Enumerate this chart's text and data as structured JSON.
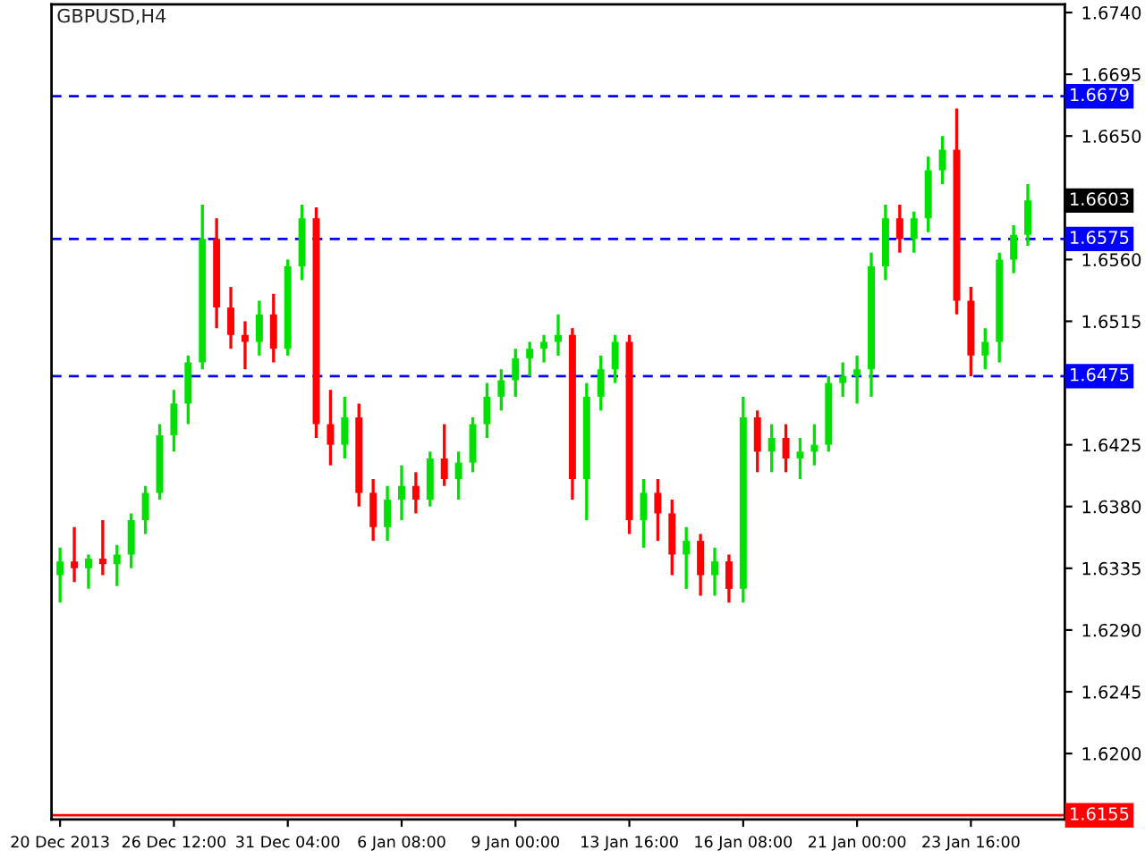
{
  "chart_data": {
    "type": "candlestick",
    "title": "GBPUSD,H4",
    "categories": [
      "20 Dec 2013",
      null,
      null,
      null,
      null,
      null,
      null,
      null,
      "26 Dec 12:00",
      null,
      null,
      null,
      null,
      null,
      null,
      null,
      "31 Dec 04:00",
      null,
      null,
      null,
      null,
      null,
      null,
      null,
      "6 Jan 08:00",
      null,
      null,
      null,
      null,
      null,
      null,
      null,
      "9 Jan 00:00",
      null,
      null,
      null,
      null,
      null,
      null,
      null,
      "13 Jan 16:00",
      null,
      null,
      null,
      null,
      null,
      null,
      null,
      "16 Jan 08:00",
      null,
      null,
      null,
      null,
      null,
      null,
      null,
      "21 Jan 00:00",
      null,
      null,
      null,
      null,
      null,
      null,
      null,
      "23 Jan 16:00",
      null,
      null,
      null,
      null
    ],
    "ohlc": [
      [
        1.633,
        1.635,
        1.631,
        1.634
      ],
      [
        1.634,
        1.6365,
        1.6325,
        1.6335
      ],
      [
        1.6335,
        1.6345,
        1.632,
        1.6342
      ],
      [
        1.6342,
        1.637,
        1.633,
        1.6338
      ],
      [
        1.6338,
        1.6352,
        1.6322,
        1.6345
      ],
      [
        1.6345,
        1.6375,
        1.6335,
        1.637
      ],
      [
        1.637,
        1.6395,
        1.636,
        1.639
      ],
      [
        1.639,
        1.644,
        1.6385,
        1.6432
      ],
      [
        1.6432,
        1.6465,
        1.642,
        1.6455
      ],
      [
        1.6455,
        1.649,
        1.644,
        1.6485
      ],
      [
        1.6485,
        1.66,
        1.648,
        1.6575
      ],
      [
        1.6575,
        1.659,
        1.651,
        1.6525
      ],
      [
        1.6525,
        1.654,
        1.6495,
        1.6505
      ],
      [
        1.6505,
        1.6515,
        1.648,
        1.65
      ],
      [
        1.65,
        1.653,
        1.649,
        1.652
      ],
      [
        1.652,
        1.6535,
        1.6485,
        1.6495
      ],
      [
        1.6495,
        1.656,
        1.649,
        1.6555
      ],
      [
        1.6555,
        1.66,
        1.6545,
        1.659
      ],
      [
        1.659,
        1.6598,
        1.643,
        1.644
      ],
      [
        1.644,
        1.6465,
        1.641,
        1.6425
      ],
      [
        1.6425,
        1.646,
        1.6415,
        1.6445
      ],
      [
        1.6445,
        1.6455,
        1.638,
        1.639
      ],
      [
        1.639,
        1.64,
        1.6355,
        1.6365
      ],
      [
        1.6365,
        1.6395,
        1.6355,
        1.6385
      ],
      [
        1.6385,
        1.641,
        1.637,
        1.6395
      ],
      [
        1.6395,
        1.6405,
        1.6375,
        1.6385
      ],
      [
        1.6385,
        1.642,
        1.638,
        1.6415
      ],
      [
        1.6415,
        1.644,
        1.6395,
        1.64
      ],
      [
        1.64,
        1.642,
        1.6385,
        1.6412
      ],
      [
        1.6412,
        1.6445,
        1.6405,
        1.644
      ],
      [
        1.644,
        1.647,
        1.643,
        1.646
      ],
      [
        1.646,
        1.648,
        1.645,
        1.6472
      ],
      [
        1.6472,
        1.6495,
        1.646,
        1.6488
      ],
      [
        1.6488,
        1.65,
        1.6475,
        1.6495
      ],
      [
        1.6495,
        1.6505,
        1.6485,
        1.65
      ],
      [
        1.65,
        1.652,
        1.649,
        1.6505
      ],
      [
        1.6505,
        1.651,
        1.6385,
        1.64
      ],
      [
        1.64,
        1.647,
        1.637,
        1.646
      ],
      [
        1.646,
        1.649,
        1.645,
        1.648
      ],
      [
        1.648,
        1.6505,
        1.647,
        1.65
      ],
      [
        1.65,
        1.6505,
        1.636,
        1.637
      ],
      [
        1.637,
        1.64,
        1.635,
        1.639
      ],
      [
        1.639,
        1.64,
        1.6355,
        1.6375
      ],
      [
        1.6375,
        1.6385,
        1.633,
        1.6345
      ],
      [
        1.6345,
        1.6365,
        1.632,
        1.6355
      ],
      [
        1.6355,
        1.636,
        1.6315,
        1.633
      ],
      [
        1.633,
        1.635,
        1.6315,
        1.634
      ],
      [
        1.634,
        1.6345,
        1.631,
        1.632
      ],
      [
        1.632,
        1.646,
        1.631,
        1.6445
      ],
      [
        1.6445,
        1.645,
        1.6405,
        1.642
      ],
      [
        1.642,
        1.644,
        1.6405,
        1.643
      ],
      [
        1.643,
        1.644,
        1.6405,
        1.6415
      ],
      [
        1.6415,
        1.643,
        1.64,
        1.642
      ],
      [
        1.642,
        1.644,
        1.641,
        1.6425
      ],
      [
        1.6425,
        1.6475,
        1.642,
        1.647
      ],
      [
        1.647,
        1.6485,
        1.646,
        1.6475
      ],
      [
        1.6475,
        1.649,
        1.6455,
        1.648
      ],
      [
        1.648,
        1.6565,
        1.646,
        1.6555
      ],
      [
        1.6555,
        1.66,
        1.6545,
        1.659
      ],
      [
        1.659,
        1.66,
        1.6565,
        1.6575
      ],
      [
        1.6575,
        1.6595,
        1.6565,
        1.659
      ],
      [
        1.659,
        1.6635,
        1.658,
        1.6625
      ],
      [
        1.6625,
        1.665,
        1.6615,
        1.664
      ],
      [
        1.664,
        1.667,
        1.652,
        1.653
      ],
      [
        1.653,
        1.654,
        1.6475,
        1.649
      ],
      [
        1.649,
        1.651,
        1.648,
        1.65
      ],
      [
        1.65,
        1.6565,
        1.6485,
        1.656
      ],
      [
        1.656,
        1.6585,
        1.655,
        1.6578
      ],
      [
        1.6578,
        1.6615,
        1.657,
        1.6603
      ]
    ],
    "colors": [
      "#00e000",
      "#ff0000",
      "#00e000",
      "#ff0000",
      "#00e000",
      "#00e000",
      "#00e000",
      "#00e000",
      "#00e000",
      "#00e000",
      "#00e000",
      "#ff0000",
      "#ff0000",
      "#ff0000",
      "#00e000",
      "#ff0000",
      "#00e000",
      "#00e000",
      "#ff0000",
      "#ff0000",
      "#00e000",
      "#ff0000",
      "#ff0000",
      "#00e000",
      "#00e000",
      "#ff0000",
      "#00e000",
      "#ff0000",
      "#00e000",
      "#00e000",
      "#00e000",
      "#00e000",
      "#00e000",
      "#00e000",
      "#00e000",
      "#00e000",
      "#ff0000",
      "#00e000",
      "#00e000",
      "#00e000",
      "#ff0000",
      "#00e000",
      "#ff0000",
      "#ff0000",
      "#00e000",
      "#ff0000",
      "#00e000",
      "#ff0000",
      "#00e000",
      "#ff0000",
      "#00e000",
      "#ff0000",
      "#00e000",
      "#00e000",
      "#00e000",
      "#00e000",
      "#00e000",
      "#00e000",
      "#00e000",
      "#ff0000",
      "#00e000",
      "#00e000",
      "#00e000",
      "#ff0000",
      "#ff0000",
      "#00e000",
      "#00e000",
      "#00e000",
      "#00e000"
    ],
    "ylim": [
      1.6152,
      1.6746
    ],
    "yticks": [
      {
        "value": 1.674,
        "label": "1.6740"
      },
      1.6695,
      {
        "value": 1.665,
        "label": "1.6650"
      },
      {
        "value": 1.656,
        "label": "1.6560"
      },
      1.6515,
      1.6425,
      {
        "value": 1.638,
        "label": "1.6380"
      },
      1.6335,
      {
        "value": 1.629,
        "label": "1.6290"
      },
      1.6245,
      {
        "value": 1.62,
        "label": "1.6200"
      }
    ],
    "ref_lines": [
      {
        "axis": "y",
        "value": 1.6679,
        "label": "1.6679",
        "color": "#0000ff",
        "line_style": "dashed"
      },
      {
        "axis": "y",
        "value": 1.6575,
        "label": "1.6575",
        "color": "#0000ff",
        "line_style": "dashed"
      },
      {
        "axis": "y",
        "value": 1.6475,
        "label": "1.6475",
        "color": "#0000ff",
        "line_style": "dashed"
      },
      {
        "axis": "y",
        "value": 1.6155,
        "label": "1.6155",
        "color": "#ff0000",
        "line_style": "solid"
      }
    ],
    "annotations": [
      "1.6603"
    ],
    "grid": false,
    "legend": false
  }
}
